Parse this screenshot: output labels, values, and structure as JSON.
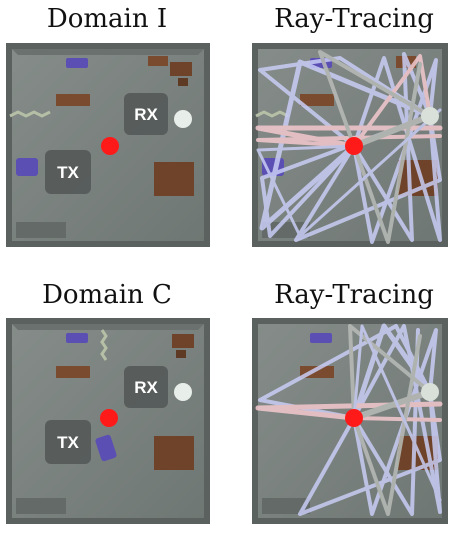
{
  "panels": [
    {
      "title": "Domain I"
    },
    {
      "title": "Ray-Tracing"
    },
    {
      "title": "Domain C"
    },
    {
      "title": "Ray-Tracing"
    }
  ],
  "labels": {
    "receiver": "RX",
    "transmitter": "TX"
  },
  "colors": {
    "floor": "#7b8380",
    "wall": "#5d6462",
    "transmitter_marker": "#ff1a1a",
    "receiver_marker": "#e8eeea",
    "ray_light": "#c9cdf5",
    "ray_pink": "#f4c9cf",
    "ray_grey": "#b9bcb8",
    "sofa_purple": "#5b4fb3",
    "furniture_brown": "#7a4b2f"
  }
}
